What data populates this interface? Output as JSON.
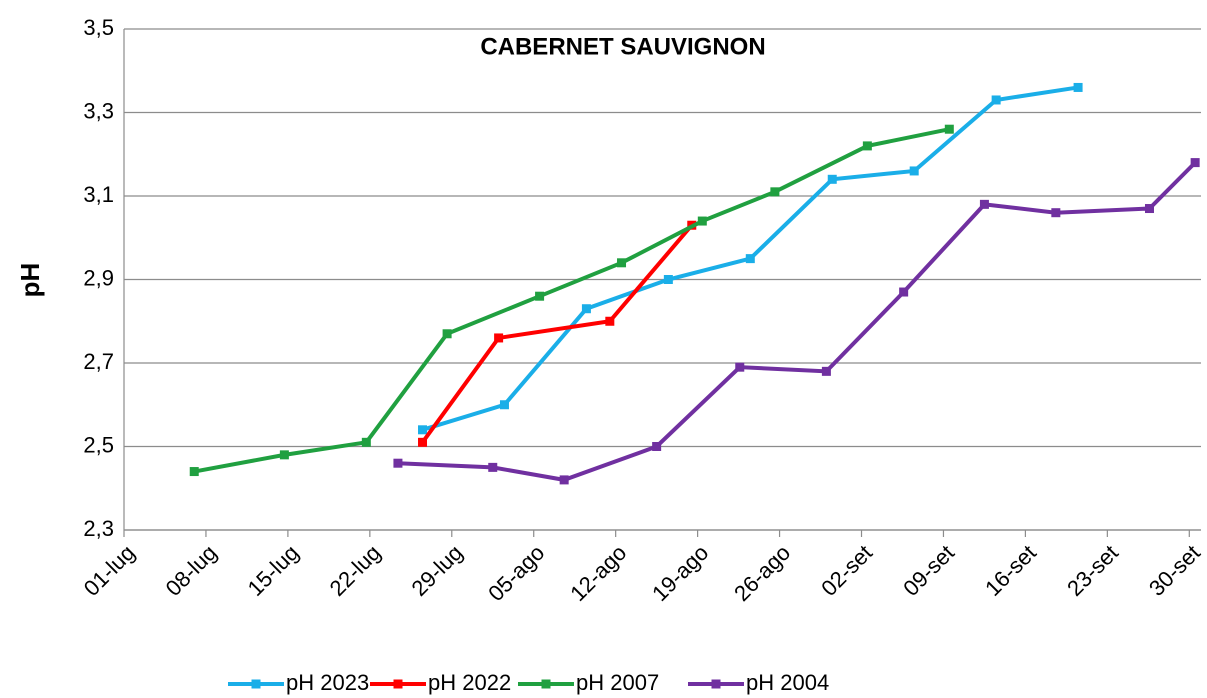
{
  "chart_data": {
    "type": "line",
    "title": "CABERNET SAUVIGNON",
    "y_label": "pH",
    "xlim": [
      0,
      92
    ],
    "xticks": [
      {
        "value": 0,
        "label": "01-lug"
      },
      {
        "value": 7,
        "label": "08-lug"
      },
      {
        "value": 14,
        "label": "15-lug"
      },
      {
        "value": 21,
        "label": "22-lug"
      },
      {
        "value": 28,
        "label": "29-lug"
      },
      {
        "value": 35,
        "label": "05-ago"
      },
      {
        "value": 42,
        "label": "12-ago"
      },
      {
        "value": 49,
        "label": "19-ago"
      },
      {
        "value": 56,
        "label": "26-ago"
      },
      {
        "value": 63,
        "label": "02-set"
      },
      {
        "value": 70,
        "label": "09-set"
      },
      {
        "value": 77,
        "label": "16-set"
      },
      {
        "value": 84,
        "label": "23-set"
      },
      {
        "value": 91,
        "label": "30-set"
      }
    ],
    "ylim": [
      2.3,
      3.5
    ],
    "yticks": [
      {
        "value": 2.3,
        "label": "2,3"
      },
      {
        "value": 2.5,
        "label": "2,5"
      },
      {
        "value": 2.7,
        "label": "2,7"
      },
      {
        "value": 2.9,
        "label": "2,9"
      },
      {
        "value": 3.1,
        "label": "3,1"
      },
      {
        "value": 3.3,
        "label": "3,3"
      },
      {
        "value": 3.5,
        "label": "3,5"
      }
    ],
    "grid": true,
    "legend": "bottom",
    "series": [
      {
        "name": "pH 2023",
        "color": "#1aaee8",
        "x": [
          25.5,
          32.5,
          39.5,
          46.5,
          53.5,
          60.5,
          67.5,
          74.5,
          81.5
        ],
        "values": [
          2.54,
          2.6,
          2.83,
          2.9,
          2.95,
          3.14,
          3.16,
          3.33,
          3.36
        ]
      },
      {
        "name": "pH 2022",
        "color": "#ff0000",
        "x": [
          25.5,
          32,
          41.5,
          48.5
        ],
        "values": [
          2.51,
          2.76,
          2.8,
          3.03
        ]
      },
      {
        "name": "pH 2007",
        "color": "#20a040",
        "x": [
          6,
          13.7,
          20.7,
          27.6,
          35.5,
          42.5,
          49.4,
          55.6,
          63.5,
          70.5
        ],
        "values": [
          2.44,
          2.48,
          2.51,
          2.77,
          2.86,
          2.94,
          3.04,
          3.11,
          3.22,
          3.26
        ]
      },
      {
        "name": "pH 2004",
        "color": "#7030a0",
        "x": [
          23.4,
          31.5,
          37.6,
          45.5,
          52.6,
          60,
          66.6,
          73.5,
          79.6,
          87.6,
          91.5
        ],
        "values": [
          2.46,
          2.45,
          2.42,
          2.5,
          2.69,
          2.68,
          2.87,
          3.08,
          3.06,
          3.07,
          3.18
        ]
      }
    ]
  }
}
